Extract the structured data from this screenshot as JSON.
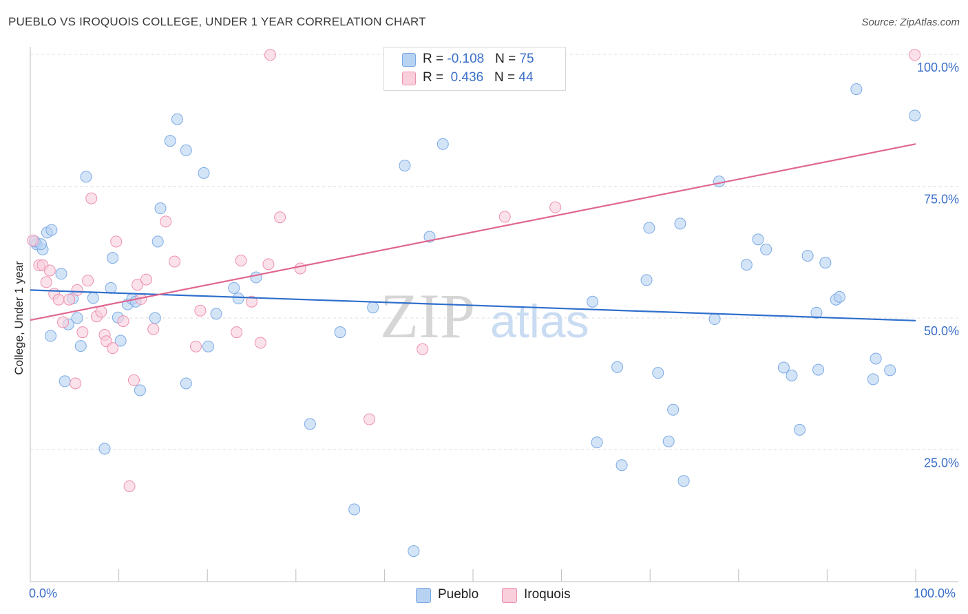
{
  "title": "PUEBLO VS IROQUOIS COLLEGE, UNDER 1 YEAR CORRELATION CHART",
  "source": "Source: ZipAtlas.com",
  "watermark": {
    "zip": "ZIP",
    "atlas": "atlas"
  },
  "legend": {
    "r_label": "R = ",
    "n_label": "N = ",
    "rows": [
      {
        "r": "-0.108",
        "n": "75",
        "color": "#a8c8f0"
      },
      {
        "r": "0.436",
        "n": "44",
        "color": "#f6b4c8"
      }
    ]
  },
  "bottom_legend": [
    {
      "label": "Pueblo",
      "color": "#a8c8f0"
    },
    {
      "label": "Iroquois",
      "color": "#f6b4c8"
    }
  ],
  "x_axis": {
    "left_label": "0.0%",
    "right_label": "100.0%"
  },
  "chart_data": {
    "type": "scatter",
    "title": "PUEBLO VS IROQUOIS COLLEGE, UNDER 1 YEAR CORRELATION CHART",
    "xlabel": "",
    "ylabel": "College, Under 1 year",
    "xlim": [
      0,
      100
    ],
    "ylim": [
      0,
      100
    ],
    "y_ticks": [
      {
        "value": 100,
        "label": "100.0%"
      },
      {
        "value": 75,
        "label": "75.0%"
      },
      {
        "value": 50,
        "label": "50.0%"
      },
      {
        "value": 25,
        "label": "25.0%"
      }
    ],
    "grid": true,
    "series": [
      {
        "name": "Pueblo",
        "color": "#7aaae6",
        "fill": "#b8d2f2",
        "trend": {
          "x": [
            0,
            100
          ],
          "y": [
            55.3,
            49.5
          ],
          "color": "#2f6fcc"
        },
        "points": [
          [
            0.7,
            64
          ],
          [
            1.4,
            63
          ],
          [
            1.9,
            66.2
          ],
          [
            2.4,
            66.7
          ],
          [
            2.3,
            46.6
          ],
          [
            3.5,
            58.4
          ],
          [
            3.9,
            38
          ],
          [
            4.3,
            48.8
          ],
          [
            4.8,
            53.7
          ],
          [
            5.3,
            50
          ],
          [
            5.7,
            44.7
          ],
          [
            6.3,
            76.8
          ],
          [
            7.1,
            53.8
          ],
          [
            8.4,
            25.2
          ],
          [
            9.1,
            55.7
          ],
          [
            9.3,
            61.4
          ],
          [
            9.9,
            50.1
          ],
          [
            10.2,
            45.7
          ],
          [
            11.0,
            52.6
          ],
          [
            11.5,
            53.6
          ],
          [
            11.9,
            53.1
          ],
          [
            12.4,
            36.3
          ],
          [
            14.1,
            50
          ],
          [
            14.4,
            64.5
          ],
          [
            14.7,
            70.8
          ],
          [
            15.8,
            83.6
          ],
          [
            16.6,
            87.7
          ],
          [
            17.6,
            81.8
          ],
          [
            17.6,
            37.6
          ],
          [
            19.6,
            77.5
          ],
          [
            20.1,
            44.6
          ],
          [
            21.0,
            50.8
          ],
          [
            23.0,
            55.7
          ],
          [
            23.5,
            53.7
          ],
          [
            25.5,
            57.7
          ],
          [
            31.6,
            29.9
          ],
          [
            35.0,
            47.3
          ],
          [
            36.6,
            13.7
          ],
          [
            38.7,
            52
          ],
          [
            42.3,
            78.9
          ],
          [
            43.3,
            5.8
          ],
          [
            45.1,
            65.4
          ],
          [
            46.6,
            83
          ],
          [
            63.5,
            53.1
          ],
          [
            64.0,
            26.4
          ],
          [
            66.3,
            40.7
          ],
          [
            66.8,
            22.1
          ],
          [
            69.6,
            57.2
          ],
          [
            69.9,
            67.1
          ],
          [
            70.9,
            39.6
          ],
          [
            72.1,
            26.6
          ],
          [
            72.6,
            32.6
          ],
          [
            73.4,
            67.9
          ],
          [
            73.8,
            19.1
          ],
          [
            77.3,
            49.8
          ],
          [
            77.8,
            75.9
          ],
          [
            80.9,
            60.1
          ],
          [
            82.2,
            64.9
          ],
          [
            83.1,
            63
          ],
          [
            85.1,
            40.6
          ],
          [
            86.0,
            39.1
          ],
          [
            86.9,
            28.8
          ],
          [
            87.8,
            61.8
          ],
          [
            88.8,
            51
          ],
          [
            89.0,
            40.2
          ],
          [
            89.8,
            60.5
          ],
          [
            91.0,
            53.5
          ],
          [
            91.4,
            54
          ],
          [
            93.3,
            93.4
          ],
          [
            95.2,
            38.4
          ],
          [
            95.5,
            42.3
          ],
          [
            97.1,
            40.1
          ],
          [
            99.9,
            88.4
          ],
          [
            0.5,
            64.5
          ],
          [
            1.2,
            64
          ]
        ]
      },
      {
        "name": "Iroquois",
        "color": "#ee8fae",
        "fill": "#f9cfdc",
        "trend": {
          "x": [
            0,
            100
          ],
          "y": [
            49.6,
            83
          ],
          "color": "#e06690"
        },
        "points": [
          [
            0.3,
            64.7
          ],
          [
            1.0,
            60
          ],
          [
            1.4,
            60
          ],
          [
            1.8,
            56.8
          ],
          [
            2.2,
            59
          ],
          [
            2.7,
            54.6
          ],
          [
            3.2,
            53.5
          ],
          [
            3.7,
            49.2
          ],
          [
            4.4,
            53.5
          ],
          [
            5.1,
            37.6
          ],
          [
            5.3,
            55.3
          ],
          [
            5.9,
            47.3
          ],
          [
            6.5,
            57.1
          ],
          [
            6.9,
            72.7
          ],
          [
            7.5,
            50.3
          ],
          [
            8.0,
            51.2
          ],
          [
            8.4,
            46.8
          ],
          [
            8.6,
            45.6
          ],
          [
            9.3,
            44.3
          ],
          [
            9.7,
            64.5
          ],
          [
            10.5,
            49.4
          ],
          [
            11.2,
            18.1
          ],
          [
            11.7,
            38.2
          ],
          [
            12.1,
            56.3
          ],
          [
            12.5,
            53.6
          ],
          [
            13.1,
            57.3
          ],
          [
            13.9,
            47.9
          ],
          [
            15.3,
            68.3
          ],
          [
            16.3,
            60.7
          ],
          [
            18.7,
            44.6
          ],
          [
            19.2,
            51.4
          ],
          [
            23.3,
            47.3
          ],
          [
            23.8,
            60.9
          ],
          [
            25.0,
            53.1
          ],
          [
            26.0,
            45.3
          ],
          [
            26.9,
            60.2
          ],
          [
            27.1,
            99.9
          ],
          [
            28.2,
            69.1
          ],
          [
            30.5,
            59.4
          ],
          [
            38.3,
            30.8
          ],
          [
            44.3,
            44.1
          ],
          [
            53.6,
            69.2
          ],
          [
            59.3,
            71
          ],
          [
            99.9,
            99.9
          ]
        ]
      }
    ]
  }
}
